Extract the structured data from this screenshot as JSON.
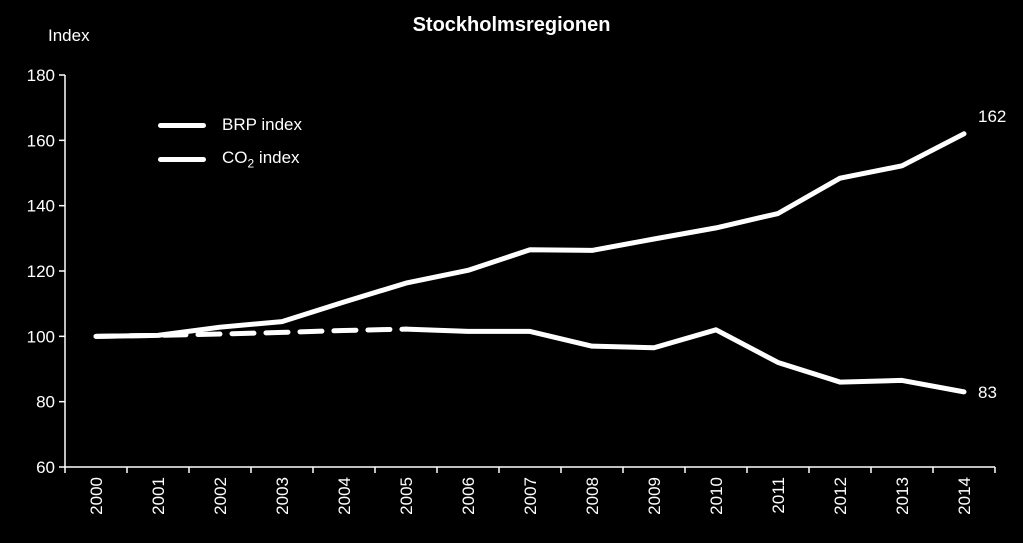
{
  "chart_data": {
    "type": "line",
    "title": "Stockholmsregionen",
    "ylabel": "Index",
    "xlabel": "",
    "categories": [
      "2000",
      "2001",
      "2002",
      "2003",
      "2004",
      "2005",
      "2006",
      "2007",
      "2008",
      "2009",
      "2010",
      "2011",
      "2012",
      "2013",
      "2014"
    ],
    "ylim": [
      60,
      180
    ],
    "yticks": [
      60,
      80,
      100,
      120,
      140,
      160,
      180
    ],
    "legend_position": "top-left",
    "grid": false,
    "series": [
      {
        "name": "BRP index",
        "values": [
          100,
          100.3,
          102.8,
          104.5,
          110.5,
          116.3,
          120.2,
          126.5,
          126.3,
          129.8,
          133.2,
          137.6,
          148.4,
          152.2,
          162
        ],
        "end_label": "162",
        "style": "solid"
      },
      {
        "name": "CO",
        "name_subscript": "2",
        "name_suffix": " index",
        "values": [
          100,
          100.3,
          100.7,
          101.2,
          101.8,
          102.2,
          101.5,
          101.5,
          97,
          96.5,
          102,
          92,
          86,
          86.5,
          83
        ],
        "end_label": "83",
        "style": "dashed-until-2005"
      }
    ],
    "colors": {
      "background": "#000000",
      "line": "#ffffff",
      "text": "#ffffff"
    }
  }
}
